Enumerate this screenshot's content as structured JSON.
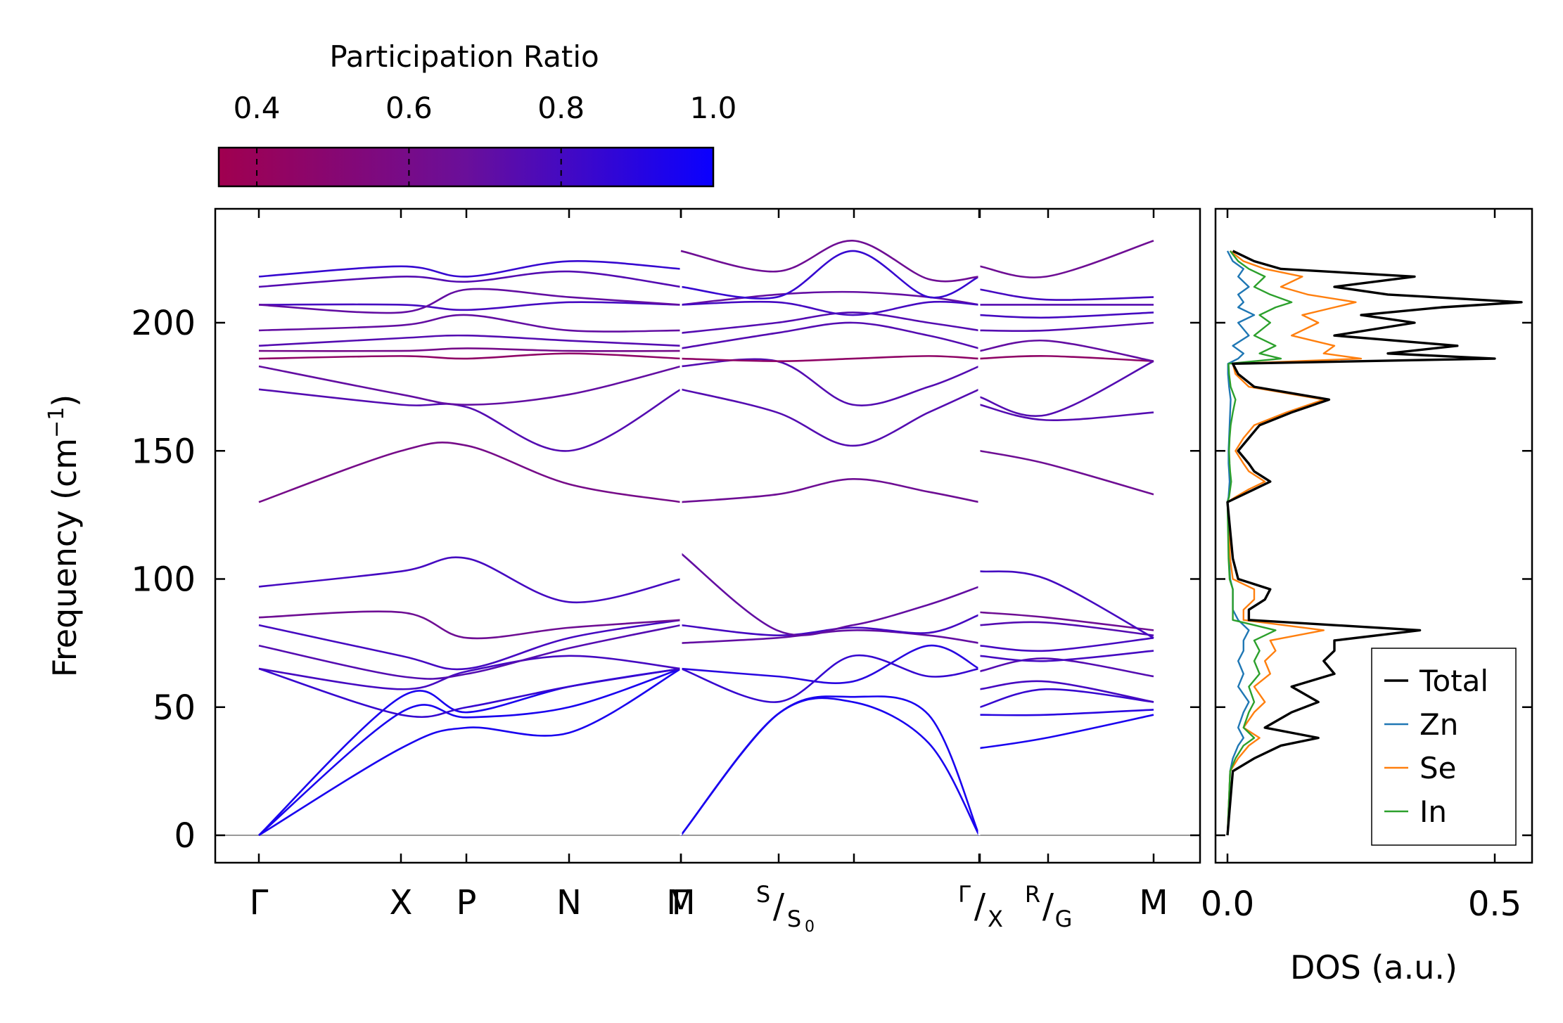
{
  "chart_data": [
    {
      "type": "line",
      "subtype": "phonon-band-structure",
      "ylabel": "Frequency (cm",
      "ylabel_sup": "−1",
      "ylabel_end": ")",
      "ylim": [
        -12,
        243
      ],
      "yticks": [
        0,
        50,
        100,
        150,
        200
      ],
      "ytick_labels": [
        "0",
        "50",
        "100",
        "150",
        "200"
      ],
      "segments": [
        {
          "labels": [
            {
              "text": "Γ"
            },
            {
              "text": "X"
            },
            {
              "text": "P"
            },
            {
              "text": "N"
            },
            {
              "text": "Γ"
            }
          ]
        },
        {
          "labels": [
            {
              "text": "M"
            },
            {
              "sup": "S",
              "sub": "S",
              "subsub": "0"
            }
          ]
        },
        {
          "labels": [
            {
              "sup": "Γ",
              "sub": "X"
            },
            {
              "sup": "R",
              "sub": "G"
            },
            {
              "text": "M"
            }
          ]
        }
      ],
      "colorbar": {
        "title": "Participation Ratio",
        "range": [
          0.35,
          1.0
        ],
        "ticks": [
          0.4,
          0.6,
          0.8,
          1.0
        ],
        "tick_labels": [
          "0.4",
          "0.6",
          "0.8",
          "1.0"
        ],
        "color_low": "#a0004f",
        "color_mid": "#6a0f9a",
        "color_high": "#0a00ff"
      },
      "bands_approx": {
        "segment1_k": [
          0,
          1.4,
          2.05,
          3.05,
          4.15
        ],
        "segment1": [
          {
            "y": [
              0,
              54,
              48,
              58,
              65
            ],
            "pr": 0.95
          },
          {
            "y": [
              0,
              48,
              46,
              50,
              65
            ],
            "pr": 0.95
          },
          {
            "y": [
              0,
              34,
              42,
              40,
              65
            ],
            "pr": 0.95
          },
          {
            "y": [
              65,
              47,
              50,
              58,
              65
            ],
            "pr": 0.85
          },
          {
            "y": [
              65,
              57,
              64,
              70,
              65
            ],
            "pr": 0.8
          },
          {
            "y": [
              74,
              62,
              63,
              73,
              82
            ],
            "pr": 0.75
          },
          {
            "y": [
              82,
              70,
              65,
              77,
              84
            ],
            "pr": 0.8
          },
          {
            "y": [
              85,
              87,
              77,
              81,
              84
            ],
            "pr": 0.65
          },
          {
            "y": [
              97,
              103,
              108,
              91,
              100
            ],
            "pr": 0.8
          },
          {
            "y": [
              130,
              150,
              152,
              137,
              130
            ],
            "pr": 0.6
          },
          {
            "y": [
              174,
              168,
              167,
              150,
              174
            ],
            "pr": 0.75
          },
          {
            "y": [
              183,
              172,
              168,
              172,
              183
            ],
            "pr": 0.7
          },
          {
            "y": [
              186,
              187,
              186,
              188,
              186
            ],
            "pr": 0.45
          },
          {
            "y": [
              189,
              189,
              190,
              189,
              189
            ],
            "pr": 0.6
          },
          {
            "y": [
              191,
              194,
              195,
              193,
              191
            ],
            "pr": 0.75
          },
          {
            "y": [
              197,
              199,
              203,
              197,
              197
            ],
            "pr": 0.7
          },
          {
            "y": [
              207,
              207,
              205,
              208,
              207
            ],
            "pr": 0.8
          },
          {
            "y": [
              207,
              204,
              213,
              210,
              207
            ],
            "pr": 0.7
          },
          {
            "y": [
              214,
              218,
              216,
              220,
              214
            ],
            "pr": 0.75
          },
          {
            "y": [
              218,
              222,
              218,
              224,
              221
            ],
            "pr": 0.85
          }
        ],
        "segment2_k": [
          4.15,
          5.1,
          5.85,
          6.6,
          7.1
        ],
        "segment2": [
          {
            "y": [
              0,
              47,
              54,
              47,
              0
            ],
            "pr": 0.95
          },
          {
            "y": [
              0,
              47,
              52,
              36,
              0
            ],
            "pr": 0.95
          },
          {
            "y": [
              65,
              62,
              60,
              74,
              65
            ],
            "pr": 0.9
          },
          {
            "y": [
              65,
              52,
              70,
              62,
              65
            ],
            "pr": 0.85
          },
          {
            "y": [
              75,
              77,
              80,
              78,
              75
            ],
            "pr": 0.7
          },
          {
            "y": [
              82,
              78,
              81,
              79,
              86
            ],
            "pr": 0.8
          },
          {
            "y": [
              110,
              80,
              82,
              90,
              97
            ],
            "pr": 0.7
          },
          {
            "y": [
              130,
              133,
              139,
              134,
              130
            ],
            "pr": 0.65
          },
          {
            "y": [
              174,
              165,
              152,
              165,
              174
            ],
            "pr": 0.75
          },
          {
            "y": [
              183,
              185,
              168,
              175,
              183
            ],
            "pr": 0.75
          },
          {
            "y": [
              186,
              185,
              186,
              187,
              186
            ],
            "pr": 0.45
          },
          {
            "y": [
              190,
              196,
              200,
              195,
              190
            ],
            "pr": 0.75
          },
          {
            "y": [
              196,
              200,
              204,
              200,
              197
            ],
            "pr": 0.75
          },
          {
            "y": [
              207,
              211,
              212,
              210,
              207
            ],
            "pr": 0.7
          },
          {
            "y": [
              207,
              208,
              203,
              208,
              207
            ],
            "pr": 0.8
          },
          {
            "y": [
              214,
              210,
              228,
              210,
              218
            ],
            "pr": 0.85
          },
          {
            "y": [
              228,
              220,
              232,
              217,
              218
            ],
            "pr": 0.65
          }
        ],
        "segment3_k": [
          7.1,
          7.75,
          8.8
        ],
        "segment3": [
          {
            "y": [
              34,
              38,
              47
            ],
            "pr": 0.95
          },
          {
            "y": [
              47,
              47,
              49
            ],
            "pr": 0.9
          },
          {
            "y": [
              50,
              57,
              52
            ],
            "pr": 0.85
          },
          {
            "y": [
              57,
              60,
              52
            ],
            "pr": 0.8
          },
          {
            "y": [
              64,
              69,
              62
            ],
            "pr": 0.75
          },
          {
            "y": [
              70,
              68,
              72
            ],
            "pr": 0.8
          },
          {
            "y": [
              74,
              72,
              77
            ],
            "pr": 0.8
          },
          {
            "y": [
              82,
              83,
              78
            ],
            "pr": 0.75
          },
          {
            "y": [
              87,
              85,
              80
            ],
            "pr": 0.65
          },
          {
            "y": [
              103,
              100,
              77
            ],
            "pr": 0.8
          },
          {
            "y": [
              150,
              145,
              133
            ],
            "pr": 0.65
          },
          {
            "y": [
              168,
              162,
              165
            ],
            "pr": 0.75
          },
          {
            "y": [
              171,
              164,
              185
            ],
            "pr": 0.75
          },
          {
            "y": [
              186,
              187,
              185
            ],
            "pr": 0.45
          },
          {
            "y": [
              189,
              193,
              185
            ],
            "pr": 0.7
          },
          {
            "y": [
              197,
              197,
              200
            ],
            "pr": 0.75
          },
          {
            "y": [
              203,
              202,
              204
            ],
            "pr": 0.8
          },
          {
            "y": [
              207,
              207,
              207
            ],
            "pr": 0.75
          },
          {
            "y": [
              213,
              209,
              210
            ],
            "pr": 0.8
          },
          {
            "y": [
              222,
              218,
              232
            ],
            "pr": 0.65
          }
        ]
      }
    },
    {
      "type": "line",
      "subtype": "density-of-states",
      "xlabel": "DOS (a.u.)",
      "xlim": [
        -0.03,
        0.57
      ],
      "xticks": [
        0.0,
        0.5
      ],
      "xtick_labels": [
        "0.0",
        "0.5"
      ],
      "ylim": [
        -12,
        243
      ],
      "legend": "lower-right",
      "series": [
        {
          "name": "Total",
          "color": "#000000",
          "y": [
            0,
            25,
            30,
            35,
            38,
            42,
            48,
            52,
            58,
            63,
            68,
            72,
            76,
            80,
            84,
            88,
            92,
            96,
            100,
            108,
            130,
            132,
            135,
            138,
            142,
            145,
            150,
            155,
            160,
            165,
            170,
            175,
            180,
            184,
            186,
            188,
            191,
            195,
            200,
            203,
            206,
            208,
            211,
            214,
            218,
            221,
            224,
            228
          ],
          "x": [
            0,
            0.01,
            0.05,
            0.1,
            0.17,
            0.07,
            0.12,
            0.17,
            0.12,
            0.2,
            0.18,
            0.2,
            0.2,
            0.36,
            0.04,
            0.04,
            0.07,
            0.08,
            0.02,
            0.01,
            0,
            0.02,
            0.05,
            0.08,
            0.05,
            0.04,
            0.02,
            0.04,
            0.06,
            0.12,
            0.19,
            0.05,
            0.02,
            0.01,
            0.5,
            0.3,
            0.43,
            0.2,
            0.35,
            0.25,
            0.4,
            0.55,
            0.3,
            0.2,
            0.35,
            0.1,
            0.05,
            0.01
          ]
        },
        {
          "name": "Zn",
          "color": "#1f77b4",
          "y": [
            0,
            25,
            30,
            35,
            38,
            42,
            48,
            52,
            58,
            63,
            68,
            72,
            76,
            80,
            84,
            88,
            92,
            96,
            100,
            108,
            130,
            132,
            135,
            138,
            142,
            145,
            150,
            155,
            160,
            165,
            170,
            175,
            180,
            184,
            186,
            188,
            191,
            195,
            200,
            203,
            206,
            208,
            211,
            214,
            218,
            221,
            224,
            228
          ],
          "x": [
            0,
            0.005,
            0.01,
            0.02,
            0.03,
            0.02,
            0.03,
            0.04,
            0.02,
            0.03,
            0.02,
            0.03,
            0.03,
            0.04,
            0.02,
            0.01,
            0.01,
            0.01,
            0.005,
            0.003,
            0,
            0.002,
            0.003,
            0.004,
            0.003,
            0.002,
            0.002,
            0.003,
            0.004,
            0.005,
            0.006,
            0.003,
            0.001,
            0.001,
            0.02,
            0.03,
            0.01,
            0.04,
            0.02,
            0.05,
            0.02,
            0.03,
            0.02,
            0.04,
            0.02,
            0.03,
            0.01,
            0
          ]
        },
        {
          "name": "Se",
          "color": "#ff7f0e",
          "y": [
            0,
            25,
            30,
            35,
            38,
            42,
            48,
            52,
            58,
            63,
            68,
            72,
            76,
            80,
            84,
            88,
            92,
            96,
            100,
            108,
            130,
            132,
            135,
            138,
            142,
            145,
            150,
            155,
            160,
            165,
            170,
            175,
            180,
            184,
            186,
            188,
            191,
            195,
            200,
            203,
            206,
            208,
            211,
            214,
            218,
            221,
            224,
            228
          ],
          "x": [
            0,
            0.005,
            0.02,
            0.04,
            0.06,
            0.03,
            0.05,
            0.07,
            0.05,
            0.08,
            0.07,
            0.09,
            0.08,
            0.18,
            0.03,
            0.03,
            0.05,
            0.05,
            0.01,
            0.005,
            0,
            0.015,
            0.04,
            0.07,
            0.04,
            0.03,
            0.015,
            0.03,
            0.05,
            0.11,
            0.18,
            0.04,
            0.015,
            0.01,
            0.25,
            0.18,
            0.2,
            0.12,
            0.17,
            0.14,
            0.2,
            0.24,
            0.15,
            0.1,
            0.14,
            0.07,
            0.03,
            0.005
          ]
        },
        {
          "name": "In",
          "color": "#2ca02c",
          "y": [
            0,
            25,
            30,
            35,
            38,
            42,
            48,
            52,
            58,
            63,
            68,
            72,
            76,
            80,
            84,
            88,
            92,
            96,
            100,
            108,
            130,
            132,
            135,
            138,
            142,
            145,
            150,
            155,
            160,
            165,
            170,
            175,
            180,
            184,
            186,
            188,
            191,
            195,
            200,
            203,
            206,
            208,
            211,
            214,
            218,
            221,
            224,
            228
          ],
          "x": [
            0,
            0.005,
            0.015,
            0.03,
            0.05,
            0.03,
            0.04,
            0.05,
            0.04,
            0.06,
            0.05,
            0.06,
            0.05,
            0.09,
            0.01,
            0.01,
            0.01,
            0.01,
            0.004,
            0.002,
            0,
            0.003,
            0.005,
            0.007,
            0.005,
            0.004,
            0.003,
            0.004,
            0.006,
            0.01,
            0.015,
            0.006,
            0.003,
            0.002,
            0.1,
            0.06,
            0.09,
            0.05,
            0.08,
            0.06,
            0.09,
            0.12,
            0.08,
            0.05,
            0.07,
            0.04,
            0.02,
            0.005
          ]
        }
      ]
    }
  ]
}
